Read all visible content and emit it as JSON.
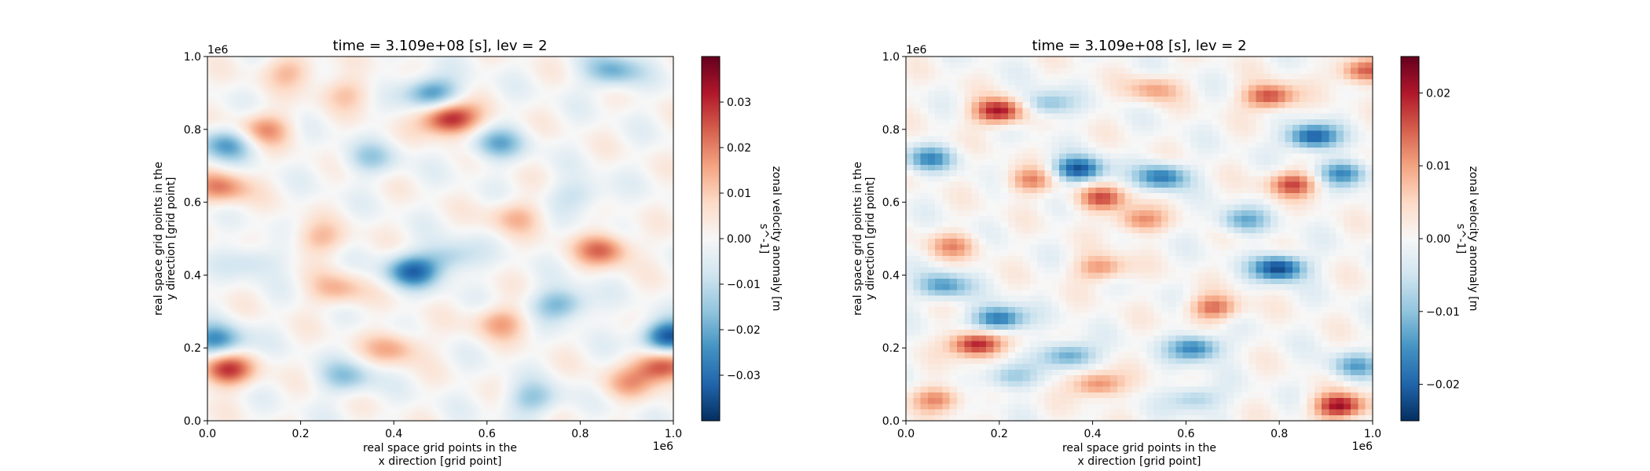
{
  "chart_data": [
    {
      "type": "heatmap",
      "title": "time = 3.109e+08 [s], lev = 2",
      "xlabel": [
        "real space grid points in the",
        "x direction [grid point]"
      ],
      "ylabel": [
        "real space grid points in the",
        "y direction [grid point]"
      ],
      "x_offset": "1e6",
      "y_offset": "1e6",
      "xlim": [
        0.0,
        1.0
      ],
      "ylim": [
        0.0,
        1.0
      ],
      "x_ticks": [
        "0.0",
        "0.2",
        "0.4",
        "0.6",
        "0.8",
        "1.0"
      ],
      "y_ticks": [
        "0.0",
        "0.2",
        "0.4",
        "0.6",
        "0.8",
        "1.0"
      ],
      "colormap": "RdBu_r",
      "shading": "smooth",
      "colorbar": {
        "label": [
          "zonal velocity anomaly [m",
          "s^-1]"
        ],
        "vmin": -0.04,
        "vmax": 0.04,
        "tick_values": [
          -0.03,
          -0.02,
          -0.01,
          0.0,
          0.01,
          0.02,
          0.03
        ],
        "tick_labels": [
          "−0.03",
          "−0.02",
          "−0.01",
          "0.00",
          "0.01",
          "0.02",
          "0.03"
        ]
      },
      "features": [
        {
          "x": 0.52,
          "y": 0.83,
          "value": 0.035
        },
        {
          "x": 0.98,
          "y": 0.15,
          "value": 0.03
        },
        {
          "x": 0.04,
          "y": 0.14,
          "value": 0.028
        },
        {
          "x": 0.85,
          "y": 0.47,
          "value": 0.022
        },
        {
          "x": 0.03,
          "y": 0.64,
          "value": 0.02
        },
        {
          "x": 0.12,
          "y": 0.8,
          "value": 0.018
        },
        {
          "x": 0.4,
          "y": 0.2,
          "value": 0.015
        },
        {
          "x": 0.63,
          "y": 0.27,
          "value": 0.015
        },
        {
          "x": 0.28,
          "y": 0.36,
          "value": 0.014
        },
        {
          "x": 0.66,
          "y": 0.56,
          "value": 0.012
        },
        {
          "x": 0.24,
          "y": 0.5,
          "value": 0.012
        },
        {
          "x": 0.3,
          "y": 0.9,
          "value": 0.01
        },
        {
          "x": 0.9,
          "y": 0.1,
          "value": 0.012
        },
        {
          "x": 0.18,
          "y": 0.96,
          "value": 0.012
        },
        {
          "x": 0.99,
          "y": 0.23,
          "value": -0.035
        },
        {
          "x": 0.04,
          "y": 0.76,
          "value": -0.022
        },
        {
          "x": 0.44,
          "y": 0.41,
          "value": -0.028
        },
        {
          "x": 0.48,
          "y": 0.9,
          "value": -0.025
        },
        {
          "x": 0.02,
          "y": 0.22,
          "value": -0.025
        },
        {
          "x": 0.87,
          "y": 0.96,
          "value": -0.02
        },
        {
          "x": 0.62,
          "y": 0.76,
          "value": -0.018
        },
        {
          "x": 0.76,
          "y": 0.32,
          "value": -0.02
        },
        {
          "x": 0.3,
          "y": 0.12,
          "value": -0.015
        },
        {
          "x": 0.52,
          "y": 0.45,
          "value": -0.014
        },
        {
          "x": 0.7,
          "y": 0.06,
          "value": -0.015
        },
        {
          "x": 0.1,
          "y": 0.44,
          "value": -0.01
        },
        {
          "x": 0.35,
          "y": 0.72,
          "value": -0.012
        },
        {
          "x": 0.8,
          "y": 0.62,
          "value": -0.01
        }
      ]
    },
    {
      "type": "heatmap",
      "title": "time = 3.109e+08 [s], lev = 2",
      "xlabel": [
        "real space grid points in the",
        "x direction [grid point]"
      ],
      "ylabel": [
        "real space grid points in the",
        "y direction [grid point]"
      ],
      "x_offset": "1e6",
      "y_offset": "1e6",
      "xlim": [
        0.0,
        1.0
      ],
      "ylim": [
        0.0,
        1.0
      ],
      "x_ticks": [
        "0.0",
        "0.2",
        "0.4",
        "0.6",
        "0.8",
        "1.0"
      ],
      "y_ticks": [
        "0.0",
        "0.2",
        "0.4",
        "0.6",
        "0.8",
        "1.0"
      ],
      "colormap": "RdBu_r",
      "shading": "pixelated",
      "grid_cells": [
        64,
        64
      ],
      "colorbar": {
        "label": [
          "zonal velocity anomaly [m",
          "s^-1]"
        ],
        "vmin": -0.025,
        "vmax": 0.025,
        "tick_values": [
          -0.02,
          -0.01,
          0.0,
          0.01,
          0.02
        ],
        "tick_labels": [
          "−0.02",
          "−0.01",
          "0.00",
          "0.01",
          "0.02"
        ]
      },
      "features": [
        {
          "x": 0.2,
          "y": 0.85,
          "value": 0.022
        },
        {
          "x": 0.15,
          "y": 0.21,
          "value": 0.022
        },
        {
          "x": 0.93,
          "y": 0.04,
          "value": 0.022
        },
        {
          "x": 0.78,
          "y": 0.89,
          "value": 0.018
        },
        {
          "x": 0.83,
          "y": 0.65,
          "value": 0.016
        },
        {
          "x": 0.42,
          "y": 0.61,
          "value": 0.015
        },
        {
          "x": 0.5,
          "y": 0.55,
          "value": 0.012
        },
        {
          "x": 0.41,
          "y": 0.1,
          "value": 0.014
        },
        {
          "x": 0.27,
          "y": 0.66,
          "value": 0.012
        },
        {
          "x": 0.42,
          "y": 0.42,
          "value": 0.012
        },
        {
          "x": 0.66,
          "y": 0.31,
          "value": 0.014
        },
        {
          "x": 0.98,
          "y": 0.96,
          "value": 0.016
        },
        {
          "x": 0.1,
          "y": 0.48,
          "value": 0.01
        },
        {
          "x": 0.53,
          "y": 0.91,
          "value": 0.01
        },
        {
          "x": 0.07,
          "y": 0.06,
          "value": 0.012
        },
        {
          "x": 0.2,
          "y": 0.28,
          "value": -0.02
        },
        {
          "x": 0.37,
          "y": 0.69,
          "value": -0.022
        },
        {
          "x": 0.8,
          "y": 0.42,
          "value": -0.024
        },
        {
          "x": 0.87,
          "y": 0.78,
          "value": -0.022
        },
        {
          "x": 0.62,
          "y": 0.2,
          "value": -0.018
        },
        {
          "x": 0.55,
          "y": 0.67,
          "value": -0.018
        },
        {
          "x": 0.94,
          "y": 0.68,
          "value": -0.016
        },
        {
          "x": 0.05,
          "y": 0.72,
          "value": -0.014
        },
        {
          "x": 0.35,
          "y": 0.18,
          "value": -0.015
        },
        {
          "x": 0.08,
          "y": 0.37,
          "value": -0.015
        },
        {
          "x": 0.96,
          "y": 0.15,
          "value": -0.012
        },
        {
          "x": 0.22,
          "y": 0.12,
          "value": -0.01
        },
        {
          "x": 0.72,
          "y": 0.55,
          "value": -0.012
        },
        {
          "x": 0.62,
          "y": 0.06,
          "value": -0.01
        },
        {
          "x": 0.3,
          "y": 0.87,
          "value": -0.012
        }
      ]
    }
  ]
}
